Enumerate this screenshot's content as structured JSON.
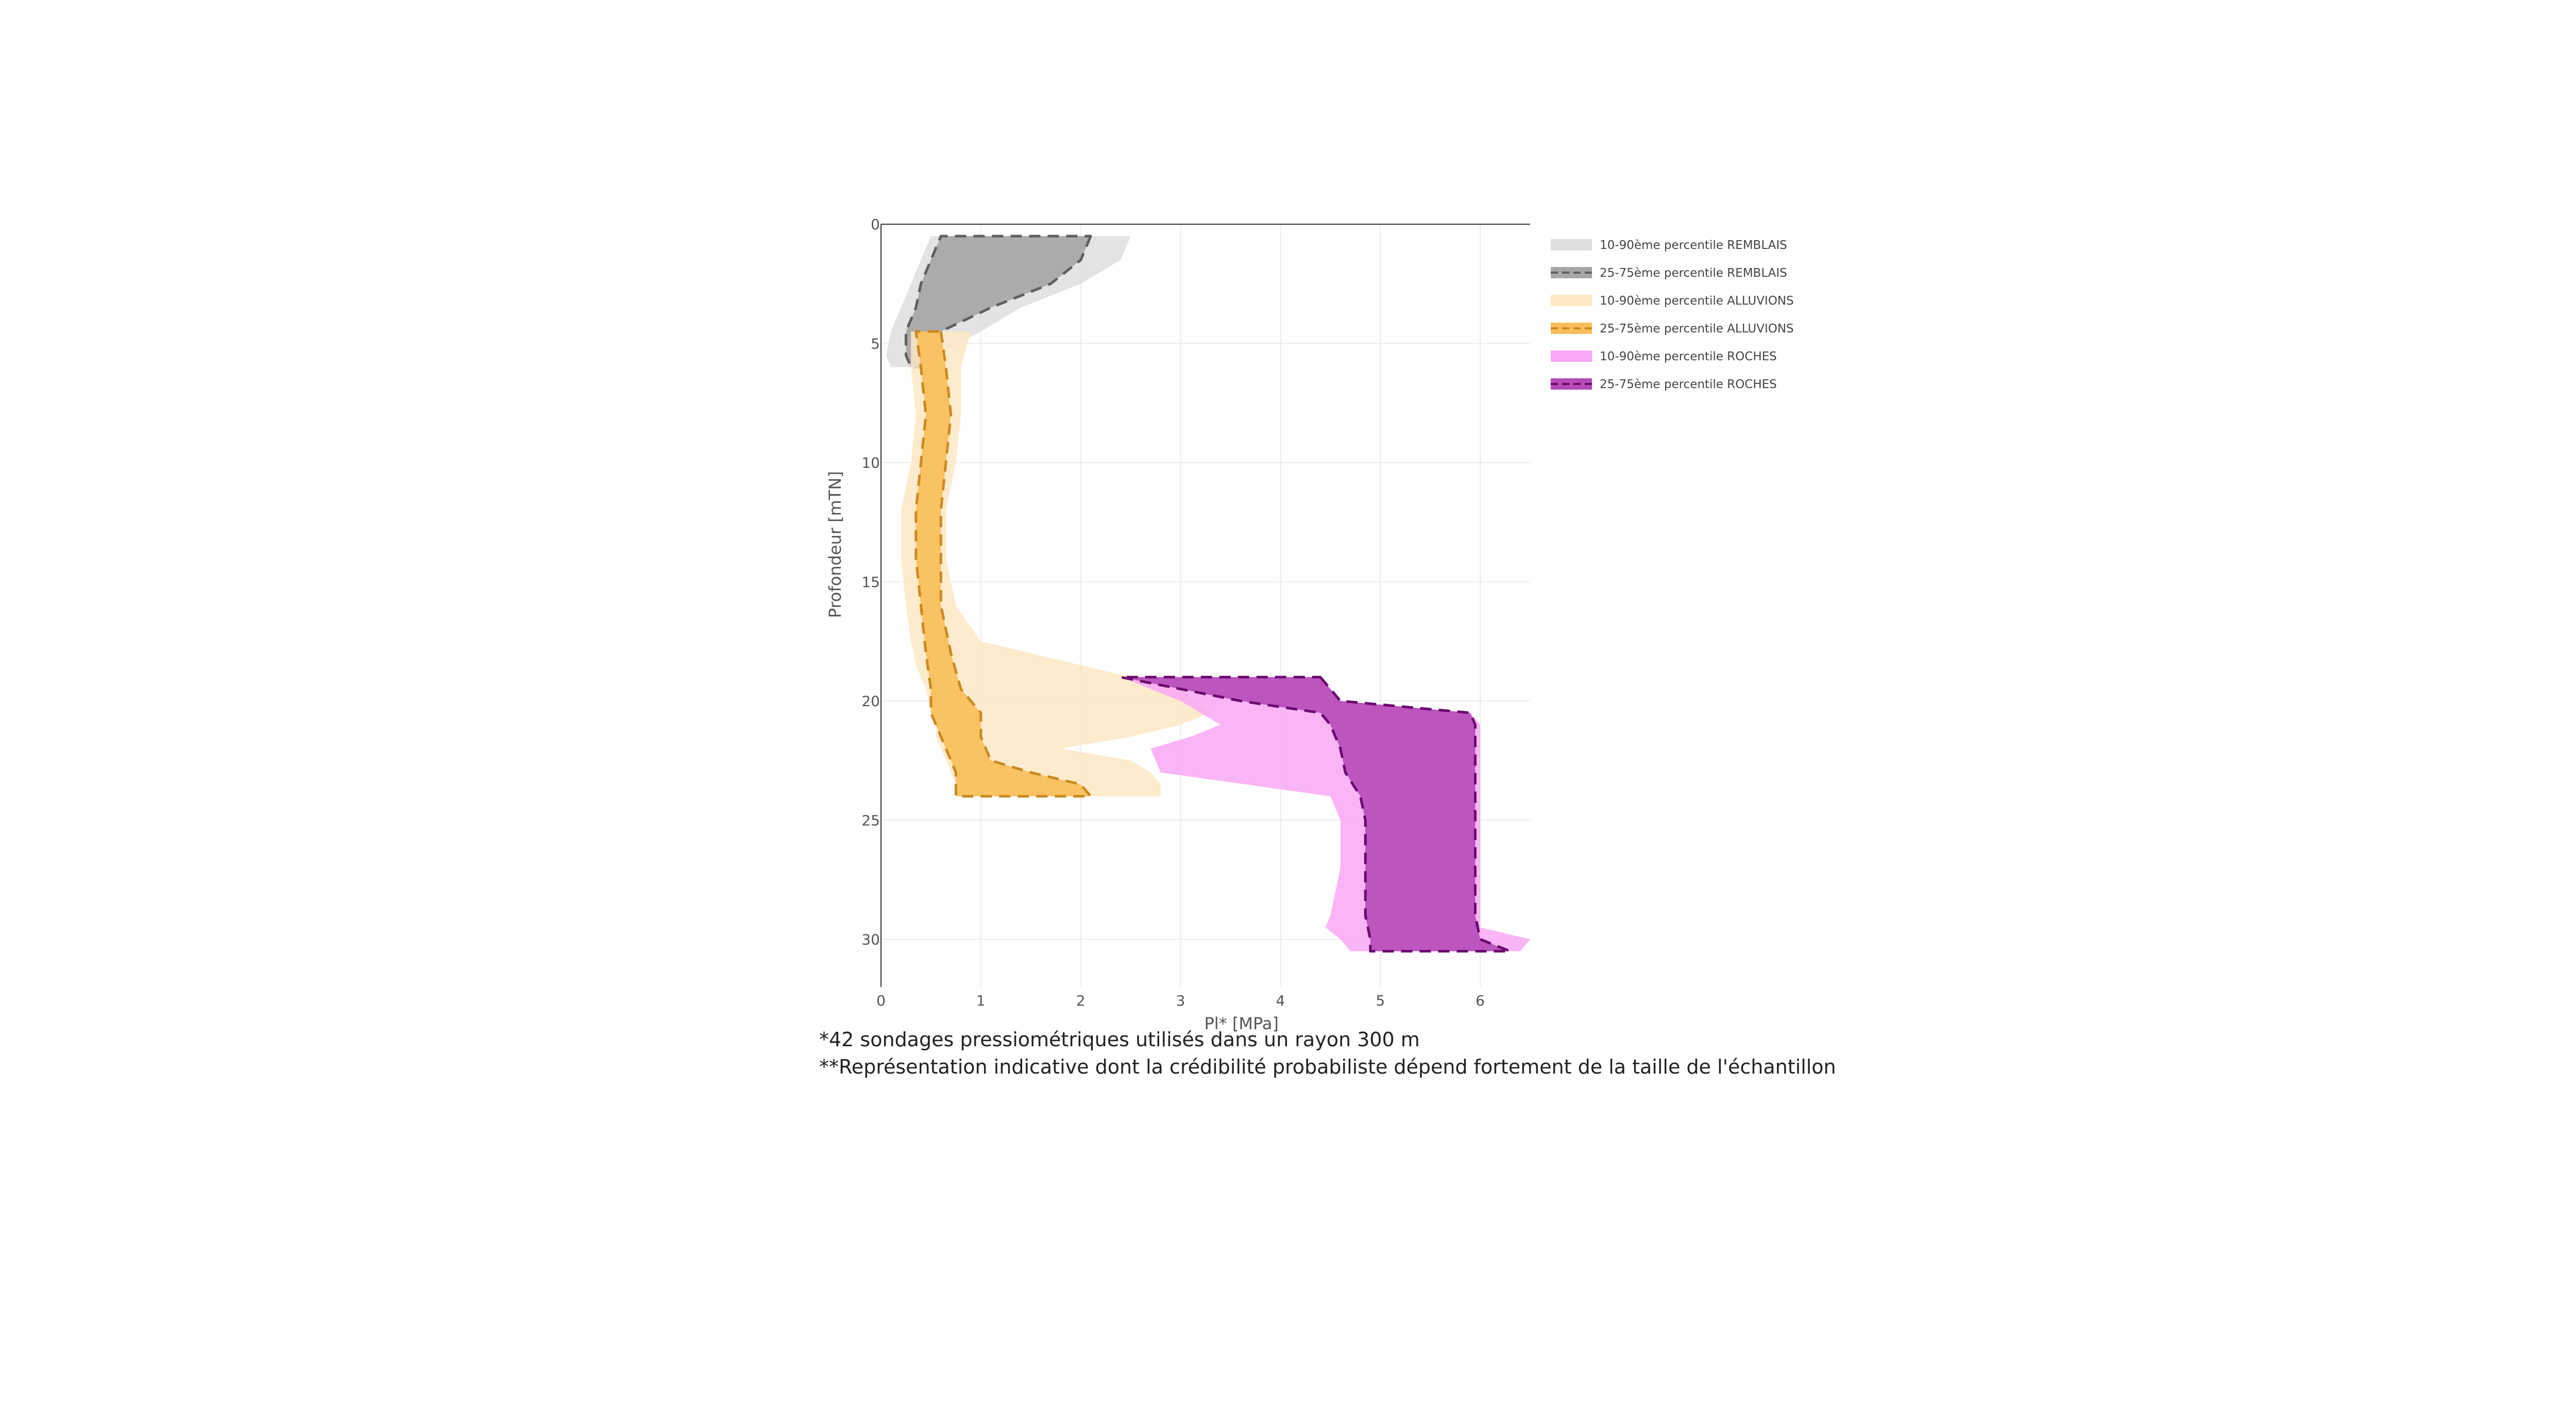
{
  "chart_data": {
    "type": "area",
    "orientation": "depth-profile",
    "xlabel": "Pl* [MPa]",
    "ylabel": "Profondeur [mTN]",
    "xlim": [
      0,
      6.5
    ],
    "ylim": [
      0,
      32
    ],
    "y_inverted": true,
    "x_ticks": [
      "0",
      "1",
      "2",
      "3",
      "4",
      "5",
      "6"
    ],
    "y_ticks": [
      "0",
      "5",
      "10",
      "15",
      "20",
      "25",
      "30"
    ],
    "grid": true,
    "legend_position": "right",
    "legend": [
      "10-90ème percentile REMBLAIS",
      "25-75ème percentile REMBLAIS",
      "10-90ème percentile ALLUVIONS",
      "25-75ème percentile ALLUVIONS",
      "10-90ème percentile ROCHES",
      "25-75ème percentile ROCHES"
    ],
    "series": [
      {
        "name": "10-90ème percentile REMBLAIS",
        "color": "#dedede",
        "depth": [
          0.5,
          1.5,
          2.5,
          3.5,
          4.5,
          5.5,
          6
        ],
        "low": [
          0.5,
          0.4,
          0.3,
          0.2,
          0.1,
          0.05,
          0.1
        ],
        "high": [
          2.5,
          2.4,
          2.0,
          1.4,
          1.0,
          0.55,
          0.5
        ]
      },
      {
        "name": "25-75ème percentile REMBLAIS",
        "color": "#a6a6a6",
        "dash_color": "#5f5f5f",
        "depth": [
          0.5,
          1.5,
          2.5,
          3.5,
          4.5,
          5.5,
          6
        ],
        "low": [
          0.6,
          0.5,
          0.4,
          0.35,
          0.25,
          0.25,
          0.3
        ],
        "high": [
          2.1,
          2.0,
          1.7,
          1.1,
          0.6,
          0.4,
          0.4
        ]
      },
      {
        "name": "10-90ème percentile ALLUVIONS",
        "color": "#fde8c4",
        "depth": [
          4.5,
          6,
          8,
          10,
          12,
          14,
          16,
          17.5,
          18.5,
          19.5,
          20.5,
          21,
          21.5,
          22,
          22.5,
          23,
          23.5,
          24
        ],
        "low": [
          0.3,
          0.3,
          0.35,
          0.3,
          0.2,
          0.2,
          0.25,
          0.3,
          0.35,
          0.45,
          0.5,
          0.55,
          0.55,
          0.6,
          0.65,
          0.7,
          0.75,
          0.75
        ],
        "high": [
          0.9,
          0.8,
          0.8,
          0.75,
          0.65,
          0.65,
          0.75,
          1.0,
          2.0,
          3.0,
          3.3,
          3.0,
          2.5,
          1.8,
          2.5,
          2.7,
          2.8,
          2.8
        ]
      },
      {
        "name": "25-75ème percentile ALLUVIONS",
        "color": "#f9be5a",
        "dash_color": "#c98a22",
        "depth": [
          4.5,
          6,
          8,
          10,
          12,
          14,
          16,
          18,
          19.5,
          20.5,
          21.5,
          22.5,
          23,
          23.5,
          24
        ],
        "low": [
          0.35,
          0.4,
          0.45,
          0.4,
          0.35,
          0.35,
          0.4,
          0.45,
          0.5,
          0.5,
          0.6,
          0.7,
          0.75,
          0.75,
          0.75
        ],
        "high": [
          0.6,
          0.65,
          0.7,
          0.65,
          0.6,
          0.6,
          0.6,
          0.7,
          0.8,
          1.0,
          1.0,
          1.1,
          1.5,
          2.0,
          2.1
        ]
      },
      {
        "name": "10-90ème percentile ROCHES",
        "color": "#f8a8f4",
        "depth": [
          19,
          20,
          20.5,
          21,
          21.5,
          22,
          23,
          24,
          25,
          27,
          29,
          29.5,
          30,
          30.5
        ],
        "low": [
          2.4,
          3.0,
          3.2,
          3.4,
          3.1,
          2.7,
          2.8,
          4.5,
          4.6,
          4.6,
          4.5,
          4.45,
          4.6,
          4.7
        ],
        "high": [
          4.4,
          4.6,
          5.9,
          6.0,
          6.0,
          6.0,
          6.0,
          6.0,
          6.0,
          6.0,
          6.0,
          6.0,
          6.5,
          6.4
        ]
      },
      {
        "name": "25-75ème percentile ROCHES",
        "color": "#b64db7",
        "dash_color": "#6a0a6e",
        "depth": [
          19,
          20,
          20.5,
          21,
          22,
          23,
          24,
          25,
          27,
          29,
          30,
          30.5
        ],
        "low": [
          2.4,
          3.6,
          4.4,
          4.5,
          4.6,
          4.65,
          4.8,
          4.85,
          4.85,
          4.85,
          4.9,
          4.9
        ],
        "high": [
          4.4,
          4.6,
          5.9,
          5.95,
          5.95,
          5.95,
          5.95,
          5.95,
          5.95,
          5.95,
          6.0,
          6.3
        ]
      }
    ]
  },
  "footnotes": [
    "*42 sondages pressiométriques utilisés dans un rayon 300 m",
    "**Représentation indicative dont la crédibilité probabiliste dépend fortement de la taille de l'échantillon"
  ]
}
